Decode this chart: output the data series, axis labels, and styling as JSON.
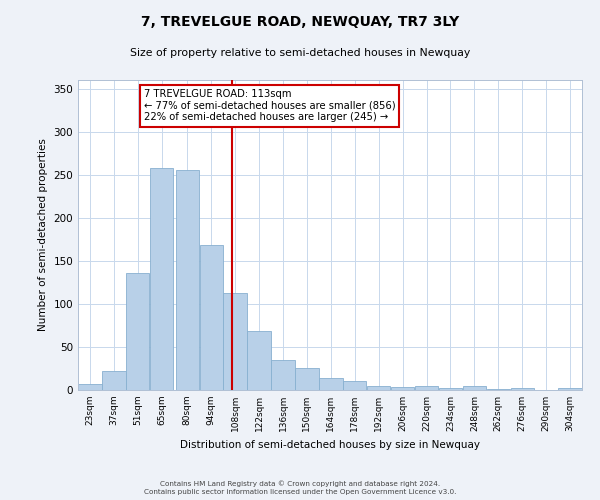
{
  "title": "7, TREVELGUE ROAD, NEWQUAY, TR7 3LY",
  "subtitle": "Size of property relative to semi-detached houses in Newquay",
  "xlabel": "Distribution of semi-detached houses by size in Newquay",
  "ylabel": "Number of semi-detached properties",
  "bin_labels": [
    "23sqm",
    "37sqm",
    "51sqm",
    "65sqm",
    "80sqm",
    "94sqm",
    "108sqm",
    "122sqm",
    "136sqm",
    "150sqm",
    "164sqm",
    "178sqm",
    "192sqm",
    "206sqm",
    "220sqm",
    "234sqm",
    "248sqm",
    "262sqm",
    "276sqm",
    "290sqm",
    "304sqm"
  ],
  "bin_edges": [
    23,
    37,
    51,
    65,
    80,
    94,
    108,
    122,
    136,
    150,
    164,
    178,
    192,
    206,
    220,
    234,
    248,
    262,
    276,
    290,
    304
  ],
  "bar_heights": [
    7,
    22,
    136,
    258,
    255,
    168,
    113,
    68,
    35,
    25,
    14,
    10,
    5,
    4,
    5,
    2,
    5,
    1,
    2,
    0,
    2
  ],
  "bar_color": "#b8d0e8",
  "bar_edge_color": "#88b0d0",
  "vline_x": 113,
  "vline_color": "#cc0000",
  "annotation_line1": "7 TREVELGUE ROAD: 113sqm",
  "annotation_line2": "← 77% of semi-detached houses are smaller (856)",
  "annotation_line3": "22% of semi-detached houses are larger (245) →",
  "ylim": [
    0,
    360
  ],
  "yticks": [
    0,
    50,
    100,
    150,
    200,
    250,
    300,
    350
  ],
  "footer_line1": "Contains HM Land Registry data © Crown copyright and database right 2024.",
  "footer_line2": "Contains public sector information licensed under the Open Government Licence v3.0.",
  "bg_color": "#eef2f8",
  "plot_bg_color": "#ffffff",
  "grid_color": "#c8d8ec"
}
